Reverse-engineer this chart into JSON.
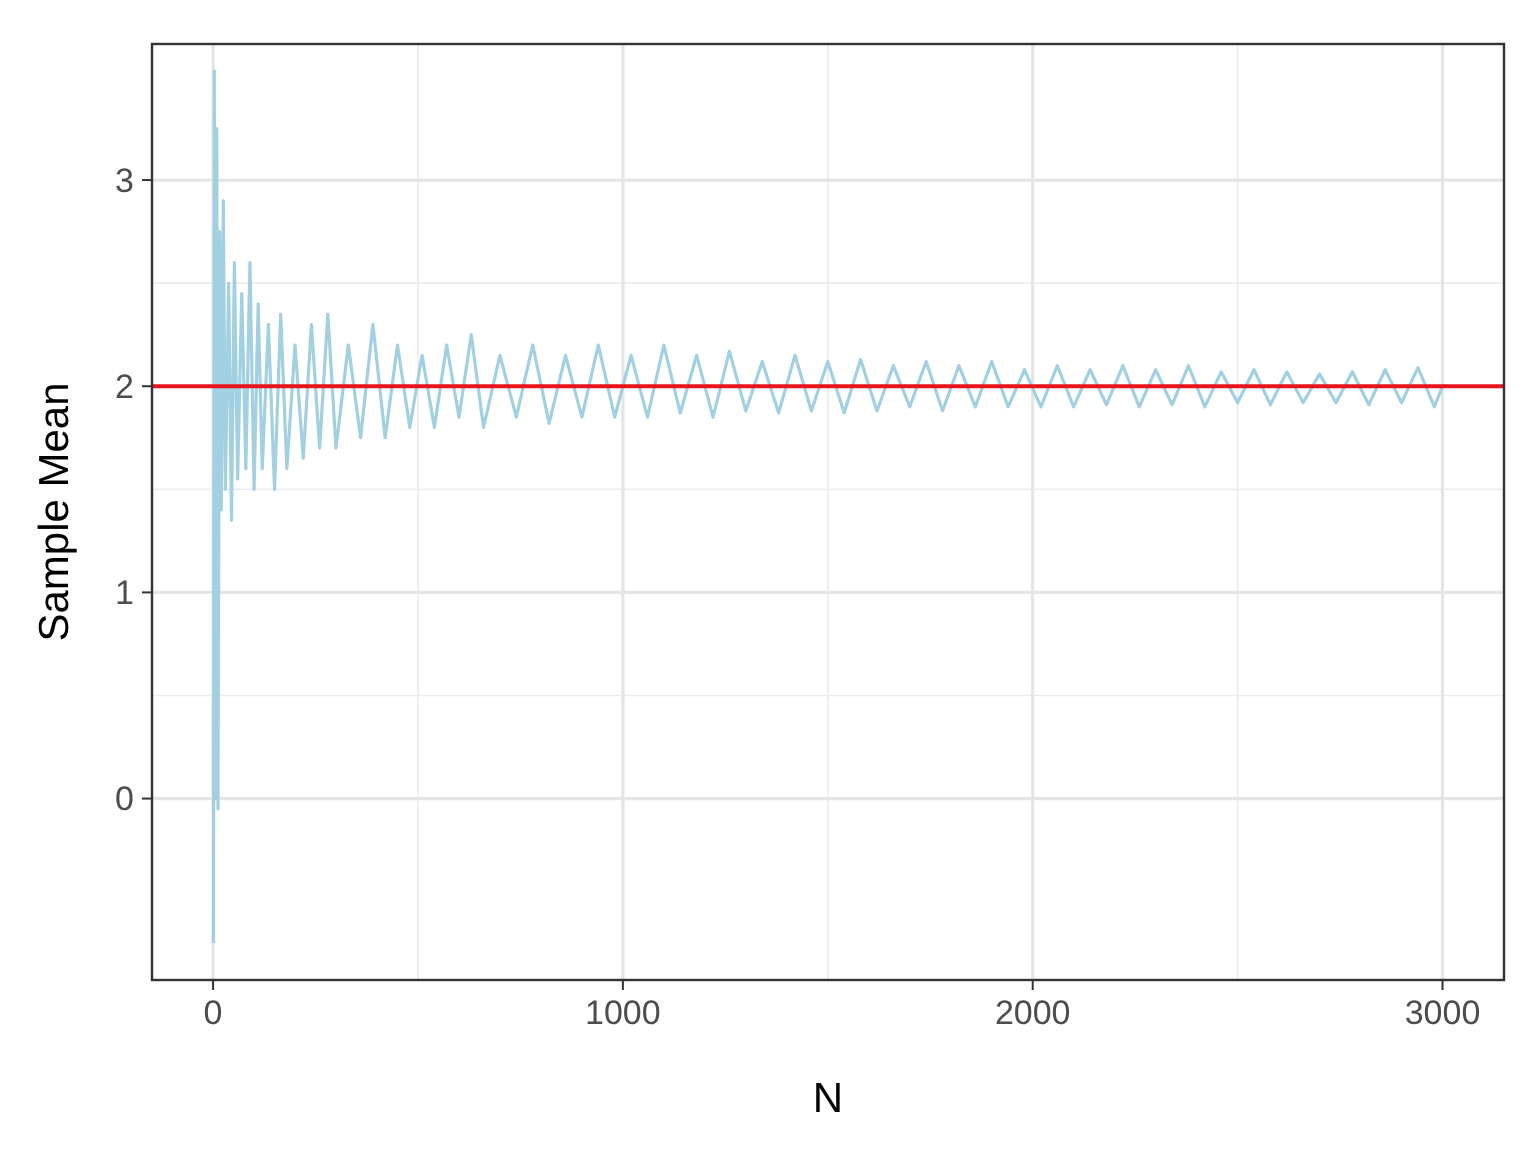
{
  "chart_data": {
    "type": "line",
    "xlabel": "N",
    "ylabel": "Sample Mean",
    "xlim": [
      -149,
      3150
    ],
    "ylim": [
      -0.88,
      3.66
    ],
    "xticks": [
      0,
      1000,
      2000,
      3000
    ],
    "yticks": [
      0,
      1,
      2,
      3
    ],
    "grid": true,
    "x": [
      1,
      3,
      6,
      9,
      12,
      16,
      20,
      25,
      30,
      38,
      45,
      52,
      60,
      70,
      80,
      90,
      100,
      110,
      120,
      135,
      150,
      165,
      180,
      200,
      220,
      240,
      260,
      280,
      300,
      330,
      360,
      390,
      420,
      450,
      480,
      510,
      540,
      570,
      600,
      630,
      660,
      700,
      740,
      780,
      820,
      860,
      900,
      940,
      980,
      1020,
      1060,
      1100,
      1140,
      1180,
      1220,
      1260,
      1300,
      1340,
      1380,
      1420,
      1460,
      1500,
      1540,
      1580,
      1620,
      1660,
      1700,
      1740,
      1780,
      1820,
      1860,
      1900,
      1940,
      1980,
      2020,
      2060,
      2100,
      2140,
      2180,
      2220,
      2260,
      2300,
      2340,
      2380,
      2420,
      2460,
      2500,
      2540,
      2580,
      2620,
      2660,
      2700,
      2740,
      2780,
      2820,
      2860,
      2900,
      2940,
      2980,
      3000
    ],
    "series": [
      {
        "color": "#a1d0e2",
        "values": [
          -0.7,
          3.53,
          0.0,
          3.25,
          -0.05,
          2.75,
          1.4,
          2.9,
          1.5,
          2.5,
          1.35,
          2.6,
          1.55,
          2.45,
          1.6,
          2.6,
          1.5,
          2.4,
          1.6,
          2.3,
          1.5,
          2.35,
          1.6,
          2.2,
          1.65,
          2.3,
          1.7,
          2.35,
          1.7,
          2.2,
          1.75,
          2.3,
          1.75,
          2.2,
          1.8,
          2.15,
          1.8,
          2.2,
          1.85,
          2.25,
          1.8,
          2.15,
          1.85,
          2.2,
          1.82,
          2.15,
          1.85,
          2.2,
          1.85,
          2.15,
          1.85,
          2.2,
          1.87,
          2.15,
          1.85,
          2.17,
          1.88,
          2.12,
          1.87,
          2.15,
          1.88,
          2.12,
          1.87,
          2.13,
          1.88,
          2.1,
          1.9,
          2.12,
          1.88,
          2.1,
          1.9,
          2.12,
          1.9,
          2.08,
          1.9,
          2.1,
          1.9,
          2.08,
          1.91,
          2.1,
          1.9,
          2.08,
          1.91,
          2.1,
          1.9,
          2.07,
          1.92,
          2.08,
          1.91,
          2.07,
          1.92,
          2.06,
          1.92,
          2.07,
          1.91,
          2.08,
          1.92,
          2.09,
          1.9,
          2.0
        ]
      }
    ],
    "ref_lines": [
      {
        "axis": "y",
        "value": 2,
        "color": "#e8141c"
      }
    ]
  }
}
